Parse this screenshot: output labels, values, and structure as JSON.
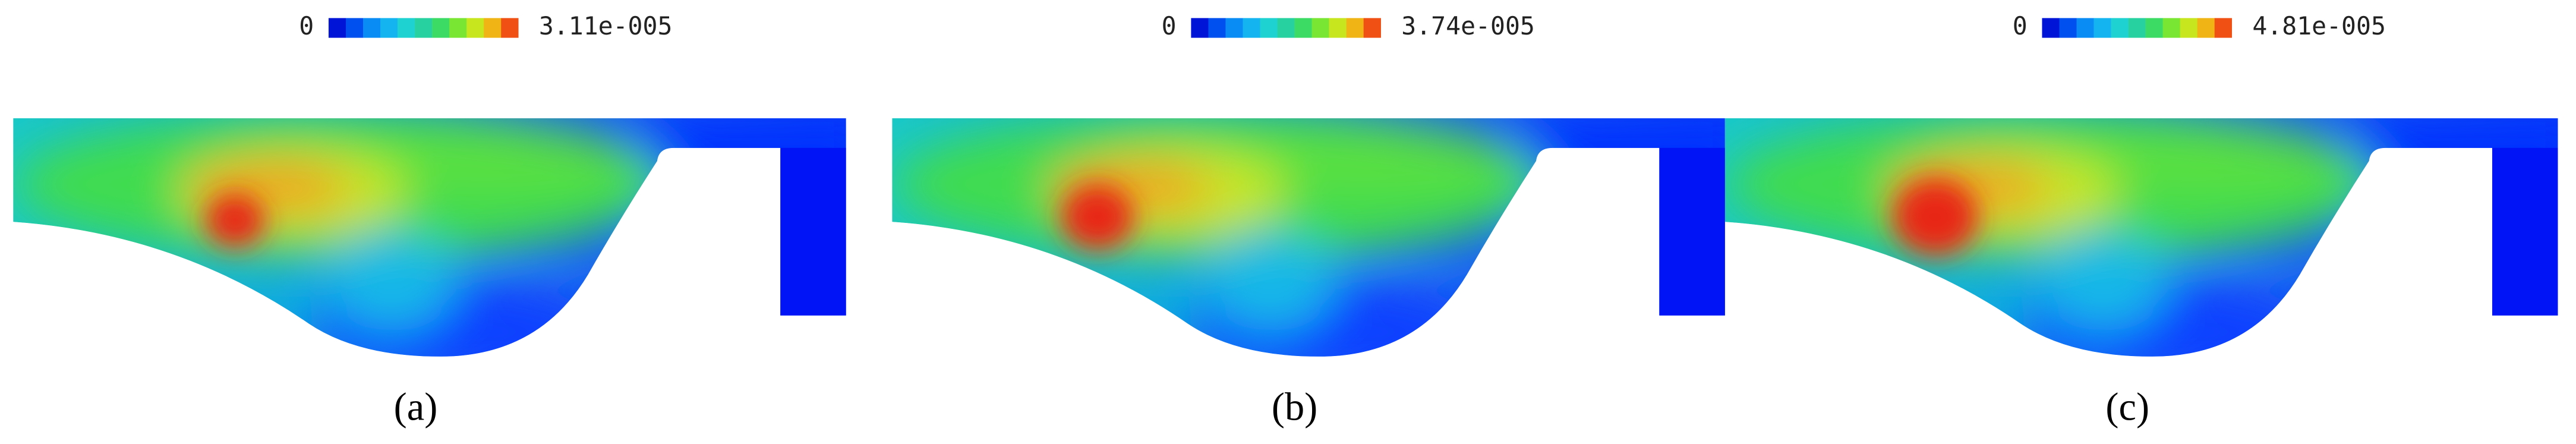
{
  "panels": [
    {
      "min_label": "0",
      "max_label": "3.11e-005",
      "caption": "(a)"
    },
    {
      "min_label": "0",
      "max_label": "3.74e-005",
      "caption": "(b)"
    },
    {
      "min_label": "0",
      "max_label": "4.81e-005",
      "caption": "(c)"
    }
  ]
}
